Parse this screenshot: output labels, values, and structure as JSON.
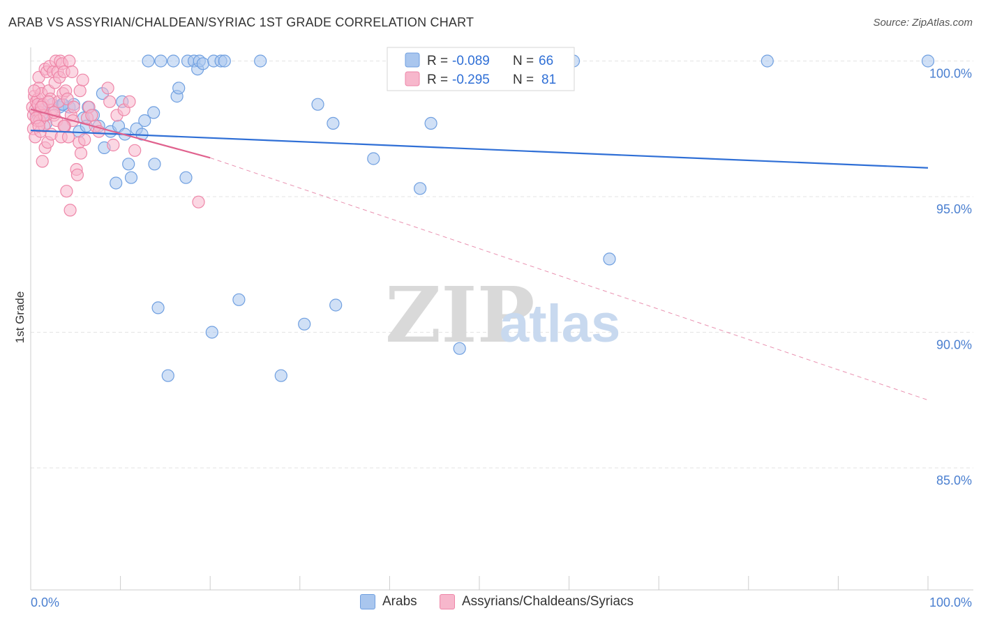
{
  "title": "ARAB VS ASSYRIAN/CHALDEAN/SYRIAC 1ST GRADE CORRELATION CHART",
  "source": "Source: ZipAtlas.com",
  "watermark": {
    "zip": "ZIP",
    "atlas": "atlas"
  },
  "legend_top": [
    {
      "r_label": "R =",
      "r_value": "-0.089",
      "n_label": "N =",
      "n_value": "66"
    },
    {
      "r_label": "R =",
      "r_value": "-0.295",
      "n_label": "N =",
      "n_value": "81"
    }
  ],
  "legend_bottom": [
    {
      "label": "Arabs"
    },
    {
      "label": "Assyrians/Chaldeans/Syriacs"
    }
  ],
  "colors": {
    "blue_fill": "#a9c6ee",
    "blue_stroke": "#6f9fe0",
    "blue_line": "#2f6fd6",
    "pink_fill": "#f7b7cc",
    "pink_stroke": "#ee86a8",
    "pink_line": "#e0628e",
    "grid": "#e3e3e3",
    "axis_text": "#4a7fd0"
  },
  "chart_data": {
    "type": "scatter",
    "title": "ARAB VS ASSYRIAN/CHALDEAN/SYRIAC 1ST GRADE CORRELATION CHART",
    "xlabel": "",
    "ylabel": "1st Grade",
    "xlim": [
      0,
      100
    ],
    "ylim": [
      80.5,
      100.5
    ],
    "x_tick_labels": [
      "0.0%",
      "100.0%"
    ],
    "y_ticks": [
      85,
      90,
      95,
      100
    ],
    "y_tick_labels": [
      "85.0%",
      "90.0%",
      "95.0%",
      "100.0%"
    ],
    "grid": true,
    "legend_position": "top-center",
    "series": [
      {
        "name": "Arabs",
        "color": "#a9c6ee",
        "points": [
          [
            0.6,
            98.1
          ],
          [
            0.9,
            97.9
          ],
          [
            1.1,
            98.4
          ],
          [
            1.4,
            98.2
          ],
          [
            1.7,
            97.7
          ],
          [
            3.2,
            98.3
          ],
          [
            3.5,
            98.4
          ],
          [
            3.8,
            97.6
          ],
          [
            4.3,
            98.3
          ],
          [
            5.4,
            97.4
          ],
          [
            5.9,
            97.9
          ],
          [
            6.2,
            97.6
          ],
          [
            6.4,
            98.3
          ],
          [
            7.0,
            98.0
          ],
          [
            7.6,
            97.6
          ],
          [
            8.0,
            98.8
          ],
          [
            8.2,
            96.8
          ],
          [
            8.9,
            97.4
          ],
          [
            9.5,
            95.5
          ],
          [
            9.8,
            97.6
          ],
          [
            10.2,
            98.5
          ],
          [
            10.5,
            97.3
          ],
          [
            10.9,
            96.2
          ],
          [
            11.2,
            95.7
          ],
          [
            11.8,
            97.5
          ],
          [
            12.4,
            97.3
          ],
          [
            12.7,
            97.8
          ],
          [
            13.1,
            100.0
          ],
          [
            13.7,
            98.1
          ],
          [
            13.8,
            96.2
          ],
          [
            14.2,
            90.9
          ],
          [
            14.5,
            100.0
          ],
          [
            15.3,
            88.4
          ],
          [
            15.9,
            100.0
          ],
          [
            16.3,
            98.7
          ],
          [
            16.5,
            99.0
          ],
          [
            17.3,
            95.7
          ],
          [
            17.5,
            100.0
          ],
          [
            18.2,
            100.0
          ],
          [
            18.6,
            99.7
          ],
          [
            18.8,
            100.0
          ],
          [
            19.2,
            99.9
          ],
          [
            20.2,
            90.0
          ],
          [
            20.4,
            100.0
          ],
          [
            21.2,
            100.0
          ],
          [
            21.6,
            100.0
          ],
          [
            23.2,
            91.2
          ],
          [
            25.6,
            100.0
          ],
          [
            27.9,
            88.4
          ],
          [
            30.5,
            90.3
          ],
          [
            32.0,
            98.4
          ],
          [
            33.7,
            97.7
          ],
          [
            34.0,
            91.0
          ],
          [
            38.2,
            96.4
          ],
          [
            43.4,
            95.3
          ],
          [
            44.6,
            97.7
          ],
          [
            47.0,
            100.0
          ],
          [
            47.8,
            89.4
          ],
          [
            60.5,
            100.0
          ],
          [
            64.5,
            92.7
          ],
          [
            82.1,
            100.0
          ],
          [
            100.0,
            100.0
          ],
          [
            1.2,
            98.0
          ],
          [
            2.4,
            98.4
          ],
          [
            3.6,
            98.4
          ],
          [
            4.8,
            98.4
          ]
        ]
      },
      {
        "name": "Assyrians/Chaldeans/Syriacs",
        "color": "#f7b7cc",
        "points": [
          [
            0.2,
            98.3
          ],
          [
            0.3,
            98.0
          ],
          [
            0.3,
            97.5
          ],
          [
            0.4,
            98.7
          ],
          [
            0.5,
            98.2
          ],
          [
            0.5,
            97.2
          ],
          [
            0.6,
            98.5
          ],
          [
            0.7,
            97.8
          ],
          [
            0.8,
            98.6
          ],
          [
            0.8,
            98.4
          ],
          [
            0.9,
            99.4
          ],
          [
            0.9,
            99.0
          ],
          [
            1.0,
            98.1
          ],
          [
            1.1,
            97.4
          ],
          [
            1.2,
            98.8
          ],
          [
            1.3,
            96.3
          ],
          [
            1.4,
            98.4
          ],
          [
            1.5,
            97.6
          ],
          [
            1.6,
            99.7
          ],
          [
            1.6,
            96.8
          ],
          [
            1.7,
            98.0
          ],
          [
            1.8,
            99.6
          ],
          [
            1.9,
            97.0
          ],
          [
            2.0,
            98.9
          ],
          [
            2.1,
            99.8
          ],
          [
            2.2,
            98.6
          ],
          [
            2.3,
            97.3
          ],
          [
            2.4,
            98.2
          ],
          [
            2.5,
            99.6
          ],
          [
            2.6,
            98.0
          ],
          [
            2.7,
            99.2
          ],
          [
            2.8,
            100.0
          ],
          [
            2.9,
            97.8
          ],
          [
            3.0,
            99.6
          ],
          [
            3.1,
            98.5
          ],
          [
            3.2,
            99.4
          ],
          [
            3.3,
            100.0
          ],
          [
            3.4,
            97.2
          ],
          [
            3.5,
            99.9
          ],
          [
            3.6,
            98.8
          ],
          [
            3.7,
            99.6
          ],
          [
            3.8,
            97.6
          ],
          [
            3.9,
            98.9
          ],
          [
            4.0,
            95.2
          ],
          [
            4.1,
            98.6
          ],
          [
            4.2,
            97.2
          ],
          [
            4.3,
            100.0
          ],
          [
            4.4,
            94.5
          ],
          [
            4.5,
            98.0
          ],
          [
            4.6,
            99.6
          ],
          [
            4.7,
            97.8
          ],
          [
            4.8,
            98.3
          ],
          [
            5.1,
            96.0
          ],
          [
            5.2,
            95.8
          ],
          [
            5.4,
            97.0
          ],
          [
            5.5,
            98.9
          ],
          [
            5.6,
            96.6
          ],
          [
            5.8,
            99.3
          ],
          [
            6.0,
            97.1
          ],
          [
            6.3,
            97.9
          ],
          [
            6.5,
            98.3
          ],
          [
            6.8,
            98.0
          ],
          [
            7.2,
            97.6
          ],
          [
            7.6,
            97.4
          ],
          [
            8.6,
            99.0
          ],
          [
            8.8,
            98.5
          ],
          [
            9.2,
            96.9
          ],
          [
            9.6,
            98.0
          ],
          [
            10.4,
            98.2
          ],
          [
            11.0,
            98.5
          ],
          [
            11.6,
            96.7
          ],
          [
            18.7,
            94.8
          ],
          [
            1.0,
            97.8
          ],
          [
            1.5,
            98.0
          ],
          [
            0.4,
            98.9
          ],
          [
            0.6,
            97.9
          ],
          [
            2.0,
            98.5
          ],
          [
            1.2,
            98.3
          ],
          [
            0.9,
            97.6
          ],
          [
            3.7,
            97.6
          ],
          [
            2.6,
            98.1
          ]
        ]
      }
    ],
    "trend_lines": [
      {
        "series": "Arabs",
        "x": [
          0,
          100
        ],
        "y": [
          97.44,
          96.06
        ],
        "style": "solid"
      },
      {
        "series": "Assyrians/Chaldeans/Syriacs",
        "x": [
          0,
          20
        ],
        "y": [
          98.22,
          96.43
        ],
        "style": "solid"
      },
      {
        "series": "Assyrians/Chaldeans/Syriacs",
        "x": [
          20,
          100
        ],
        "y": [
          96.43,
          87.5
        ],
        "style": "dashed"
      }
    ]
  }
}
